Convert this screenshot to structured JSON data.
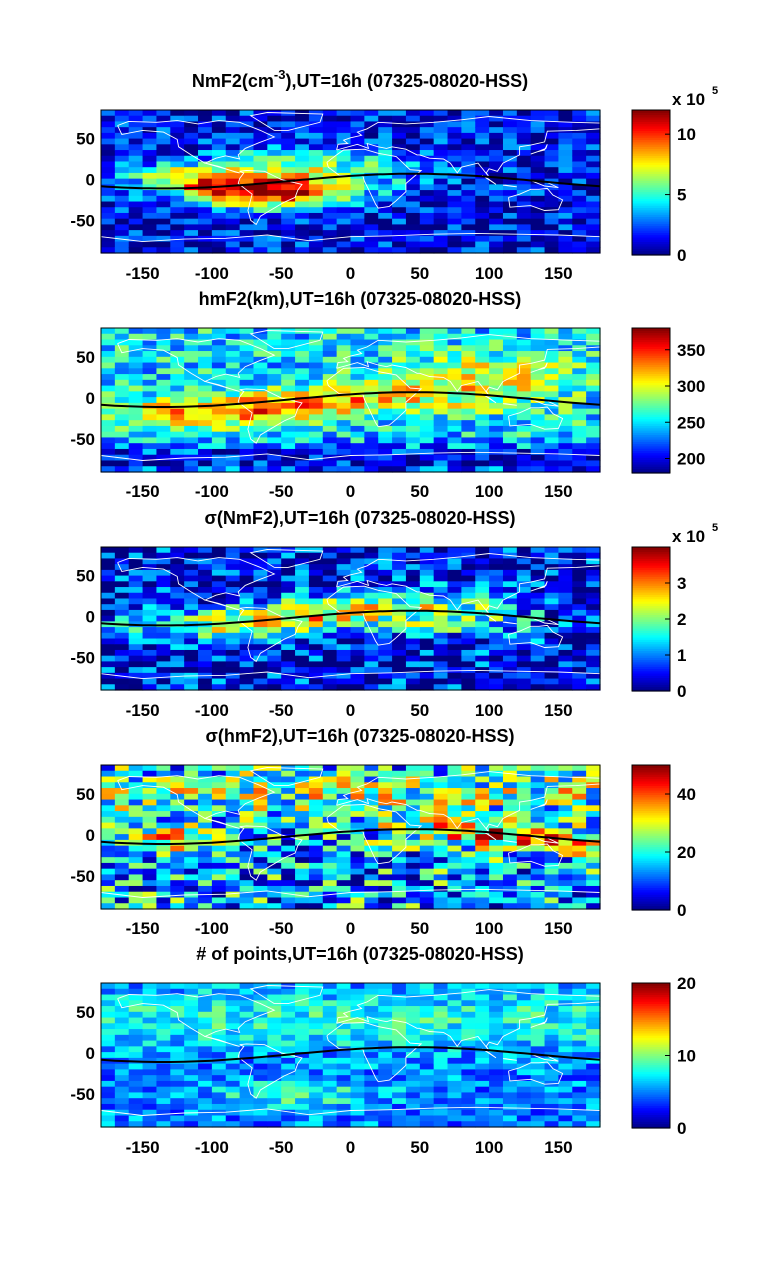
{
  "chart_data": [
    {
      "type": "heatmap",
      "title": "NmF2(cm-3),UT=16h (07325-08020-HSS)",
      "title_parts": {
        "pre": "NmF2(cm",
        "sup": "-3",
        "post": "),UT=16h (07325-08020-HSS)"
      },
      "x_ticks": [
        "-150",
        "-100",
        "-50",
        "0",
        "50",
        "100",
        "150"
      ],
      "y_ticks": [
        "50",
        "0",
        "-50"
      ],
      "xlim": [
        -180,
        180
      ],
      "ylim": [
        -90,
        85
      ],
      "colorbar": {
        "range": [
          0,
          12
        ],
        "ticks": [
          "0",
          "5",
          "10"
        ],
        "multiplier": "x 10",
        "multiplier_exp": "5"
      },
      "pattern": "nmf2"
    },
    {
      "type": "heatmap",
      "title": "hmF2(km),UT=16h (07325-08020-HSS)",
      "title_parts": {
        "pre": "hmF2(km),UT=16h (07325-08020-HSS)",
        "sup": "",
        "post": ""
      },
      "x_ticks": [
        "-150",
        "-100",
        "-50",
        "0",
        "50",
        "100",
        "150"
      ],
      "y_ticks": [
        "50",
        "0",
        "-50"
      ],
      "xlim": [
        -180,
        180
      ],
      "ylim": [
        -90,
        85
      ],
      "colorbar": {
        "range": [
          180,
          380
        ],
        "ticks": [
          "200",
          "250",
          "300",
          "350"
        ],
        "multiplier": "",
        "multiplier_exp": ""
      },
      "pattern": "hmf2"
    },
    {
      "type": "heatmap",
      "title": "σ(NmF2),UT=16h (07325-08020-HSS)",
      "title_parts": {
        "pre": "σ(NmF2),UT=16h (07325-08020-HSS)",
        "sup": "",
        "post": ""
      },
      "x_ticks": [
        "-150",
        "-100",
        "-50",
        "0",
        "50",
        "100",
        "150"
      ],
      "y_ticks": [
        "50",
        "0",
        "-50"
      ],
      "xlim": [
        -180,
        180
      ],
      "ylim": [
        -90,
        85
      ],
      "colorbar": {
        "range": [
          0,
          4
        ],
        "ticks": [
          "0",
          "1",
          "2",
          "3"
        ],
        "multiplier": "x 10",
        "multiplier_exp": "5"
      },
      "pattern": "signmf2"
    },
    {
      "type": "heatmap",
      "title": "σ(hmF2),UT=16h (07325-08020-HSS)",
      "title_parts": {
        "pre": "σ(hmF2),UT=16h (07325-08020-HSS)",
        "sup": "",
        "post": ""
      },
      "x_ticks": [
        "-150",
        "-100",
        "-50",
        "0",
        "50",
        "100",
        "150"
      ],
      "y_ticks": [
        "50",
        "0",
        "-50"
      ],
      "xlim": [
        -180,
        180
      ],
      "ylim": [
        -90,
        85
      ],
      "colorbar": {
        "range": [
          0,
          50
        ],
        "ticks": [
          "0",
          "20",
          "40"
        ],
        "multiplier": "",
        "multiplier_exp": ""
      },
      "pattern": "sighmf2"
    },
    {
      "type": "heatmap",
      "title": "# of points,UT=16h (07325-08020-HSS)",
      "title_parts": {
        "pre": "# of points,UT=16h (07325-08020-HSS)",
        "sup": "",
        "post": ""
      },
      "x_ticks": [
        "-150",
        "-100",
        "-50",
        "0",
        "50",
        "100",
        "150"
      ],
      "y_ticks": [
        "50",
        "0",
        "-50"
      ],
      "xlim": [
        -180,
        180
      ],
      "ylim": [
        -90,
        85
      ],
      "colorbar": {
        "range": [
          0,
          20
        ],
        "ticks": [
          "0",
          "10",
          "20"
        ],
        "multiplier": "",
        "multiplier_exp": ""
      },
      "pattern": "npts"
    }
  ]
}
